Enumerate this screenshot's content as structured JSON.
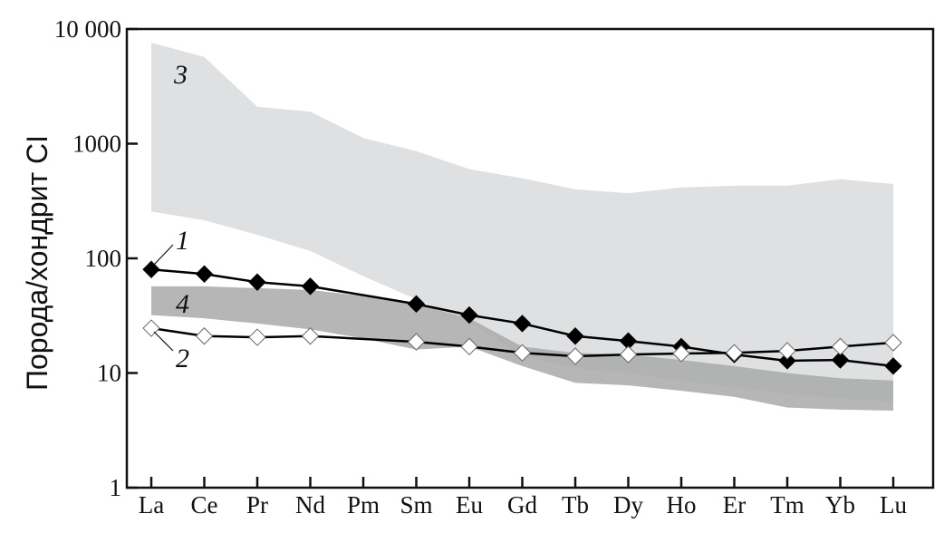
{
  "chart_data": {
    "type": "line",
    "title": "",
    "xlabel": "",
    "ylabel": "Порода/хондрит CI",
    "yscale": "log",
    "ylim": [
      1,
      10000
    ],
    "yticks": [
      1,
      10,
      100,
      1000,
      10000
    ],
    "ytick_labels": [
      "1",
      "10",
      "100",
      "1000",
      "10 000"
    ],
    "categories": [
      "La",
      "Ce",
      "Pr",
      "Nd",
      "Pm",
      "Sm",
      "Eu",
      "Gd",
      "Tb",
      "Dy",
      "Ho",
      "Er",
      "Tm",
      "Yb",
      "Lu"
    ],
    "grid": false,
    "series": [
      {
        "name": "1",
        "marker": "filled-diamond",
        "color": "#000000",
        "values": [
          80,
          73,
          62,
          57,
          null,
          40,
          32,
          27,
          21,
          19,
          17,
          14.5,
          12.8,
          13,
          11.5
        ]
      },
      {
        "name": "2",
        "marker": "open-diamond",
        "color": "#ffffff",
        "values": [
          24.6,
          21,
          20.5,
          21,
          null,
          18.7,
          17,
          15,
          14,
          14.5,
          14.8,
          15,
          15.6,
          17,
          18.4
        ]
      }
    ],
    "fields": [
      {
        "name": "3",
        "color": "#dfe0e2",
        "upper": [
          7600,
          5700,
          2100,
          1900,
          1120,
          860,
          600,
          500,
          400,
          370,
          415,
          430,
          430,
          490,
          445
        ],
        "lower": [
          256,
          215,
          160,
          116,
          70,
          44,
          28,
          14,
          11,
          10,
          8.5,
          7.5,
          6.5,
          6,
          5.6
        ]
      },
      {
        "name": "4",
        "color": "#a9a9a9",
        "upper": [
          57,
          57,
          55,
          53,
          47,
          40,
          30,
          17,
          15,
          14.5,
          13,
          11.5,
          10,
          9,
          8.6
        ],
        "lower": [
          32,
          30,
          27,
          24,
          20,
          16,
          17,
          11.5,
          8.2,
          7.8,
          7,
          6.2,
          5,
          4.8,
          4.7
        ]
      }
    ],
    "annotations": [
      "1",
      "2",
      "3",
      "4"
    ]
  }
}
